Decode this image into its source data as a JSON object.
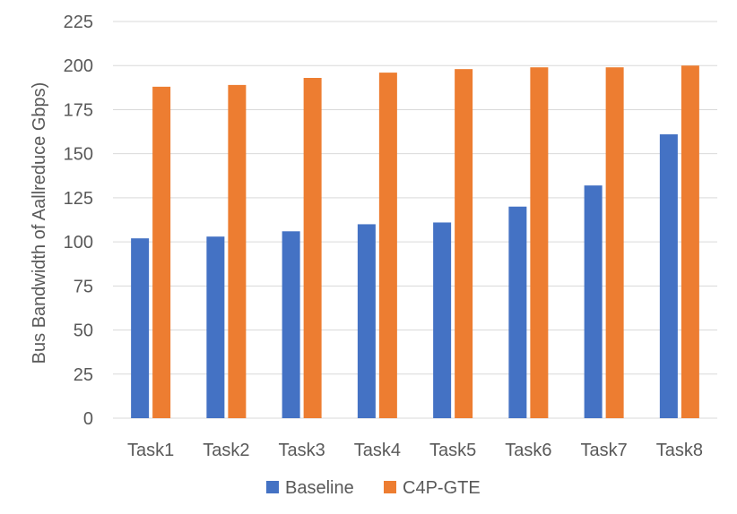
{
  "chart_data": {
    "type": "bar",
    "title": "",
    "xlabel": "",
    "ylabel": "Bus Bandwidth of Aallreduce Gbps)",
    "categories": [
      "Task1",
      "Task2",
      "Task3",
      "Task4",
      "Task5",
      "Task6",
      "Task7",
      "Task8"
    ],
    "series": [
      {
        "name": "Baseline",
        "color": "#4472C4",
        "values": [
          102,
          103,
          106,
          110,
          111,
          120,
          132,
          161
        ]
      },
      {
        "name": "C4P-GTE",
        "color": "#ED7D31",
        "values": [
          188,
          189,
          193,
          196,
          198,
          199,
          199,
          200
        ]
      }
    ],
    "ylim": [
      0,
      225
    ],
    "yticks": [
      "0",
      "25",
      "50",
      "75",
      "100",
      "125",
      "150",
      "175",
      "200",
      "225"
    ],
    "grid": true,
    "legend_position": "bottom"
  }
}
